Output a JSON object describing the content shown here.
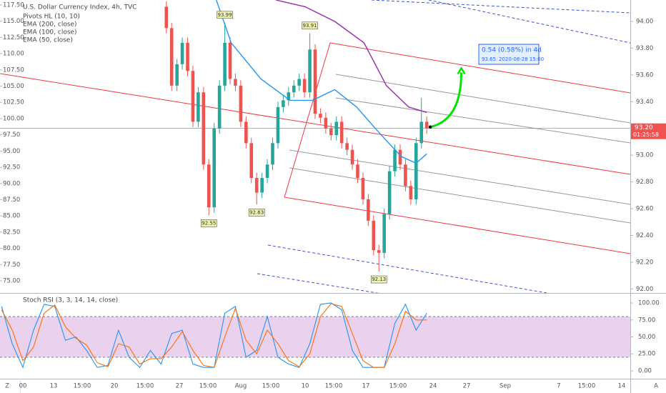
{
  "chart_data": [
    {
      "type": "candlestick",
      "title": "U.S. Dollar Currency Index, 4h, TVC",
      "indicators": [
        "Pivots HL (10, 10)",
        "EMA (200, close)",
        "EMA (100, close)",
        "EMA (50, close)"
      ],
      "x": [
        31,
        32,
        33,
        34,
        35,
        36,
        37,
        38,
        39,
        40,
        41,
        42,
        43,
        44,
        45,
        46,
        47,
        48,
        49,
        50,
        51,
        52,
        53,
        54,
        55,
        56,
        57,
        58,
        59,
        60,
        61,
        62,
        63,
        64,
        65,
        66,
        67,
        68,
        69,
        70,
        71,
        72,
        73,
        74,
        75,
        76,
        77,
        78,
        79,
        80
      ],
      "open": [
        94.11,
        93.95,
        93.52,
        93.68,
        93.84,
        93.63,
        93.25,
        93.47,
        92.93,
        92.61,
        93.2,
        93.52,
        93.84,
        93.57,
        93.52,
        93.25,
        93.09,
        92.83,
        92.72,
        92.83,
        92.93,
        93.09,
        93.36,
        93.41,
        93.47,
        93.52,
        93.57,
        93.47,
        93.79,
        93.31,
        93.28,
        93.2,
        93.15,
        93.25,
        93.09,
        93.04,
        92.93,
        92.83,
        92.67,
        92.51,
        92.29,
        92.27,
        92.56,
        92.88,
        93.04,
        92.93,
        92.77,
        92.67,
        93.09,
        93.25
      ],
      "high": [
        94.15,
        93.99,
        93.72,
        93.88,
        93.88,
        93.67,
        93.51,
        93.51,
        92.97,
        93.24,
        93.56,
        93.99,
        93.88,
        93.61,
        93.56,
        93.29,
        93.13,
        92.87,
        92.87,
        92.97,
        93.13,
        93.4,
        93.45,
        93.51,
        93.56,
        93.61,
        93.61,
        93.91,
        93.83,
        93.35,
        93.32,
        93.24,
        93.29,
        93.29,
        93.13,
        93.08,
        92.97,
        92.87,
        92.71,
        92.55,
        92.33,
        92.6,
        92.92,
        93.08,
        93.08,
        92.97,
        92.81,
        93.13,
        93.43,
        93.29
      ],
      "low": [
        93.91,
        93.48,
        93.48,
        93.64,
        93.59,
        93.21,
        93.21,
        92.89,
        92.55,
        92.57,
        93.16,
        93.48,
        93.53,
        93.48,
        93.21,
        93.05,
        92.79,
        92.63,
        92.68,
        92.79,
        92.89,
        93.05,
        93.32,
        93.37,
        93.43,
        93.48,
        93.43,
        93.43,
        93.27,
        93.24,
        93.16,
        93.11,
        93.11,
        93.05,
        93.0,
        92.89,
        92.79,
        92.63,
        92.47,
        92.25,
        92.13,
        92.23,
        92.52,
        92.84,
        92.89,
        92.73,
        92.63,
        92.63,
        93.05,
        93.16
      ],
      "close": [
        93.95,
        93.52,
        93.68,
        93.84,
        93.63,
        93.25,
        93.47,
        92.93,
        92.61,
        93.2,
        93.52,
        93.84,
        93.57,
        93.52,
        93.25,
        93.09,
        92.83,
        92.72,
        92.83,
        92.93,
        93.09,
        93.36,
        93.41,
        93.47,
        93.52,
        93.57,
        93.47,
        93.79,
        93.31,
        93.28,
        93.2,
        93.15,
        93.25,
        93.09,
        93.04,
        92.93,
        92.83,
        92.67,
        92.51,
        92.29,
        92.27,
        92.56,
        92.88,
        93.04,
        92.93,
        92.77,
        92.67,
        93.09,
        93.25,
        93.2
      ],
      "up_color": "#26a69a",
      "down_color": "#ef5350",
      "series": [
        {
          "color": "#2196f3",
          "x": [
            40.4,
            43.2,
            48.8,
            54.3,
            58.5,
            62.7,
            66.8,
            71,
            75.2,
            78,
            80
          ],
          "values": [
            94.16,
            93.84,
            93.57,
            93.41,
            93.41,
            93.49,
            93.36,
            93.17,
            92.99,
            92.94,
            93.01
          ]
        },
        {
          "color": "#9c27b0",
          "x": [
            51.6,
            57.1,
            62.7,
            68.2,
            72.4,
            76.6,
            80
          ],
          "values": [
            94.16,
            94.11,
            94.0,
            93.84,
            93.52,
            93.36,
            93.32
          ]
        }
      ],
      "pivots": {
        "x": [
          42,
          39,
          48,
          58,
          71
        ],
        "values": [
          93.99,
          92.55,
          92.63,
          93.91,
          92.13
        ]
      },
      "last_price": {
        "value": 93.2,
        "label": "93.20",
        "color": "#ef5350"
      },
      "countdown": "01:25:58",
      "forecast": {
        "change": "0.54 (0.58%) in 4d",
        "price": 93.65,
        "date": "2020-08-28 15:00",
        "x": 86.5
      },
      "xlim": [
        -0.3,
        118.3
      ],
      "ylim": [
        91.97,
        94.16
      ],
      "yticks": [
        {
          "value": 94.0,
          "label": "94.00"
        },
        {
          "value": 93.8,
          "label": "93.80"
        },
        {
          "value": 93.6,
          "label": "93.60"
        },
        {
          "value": 93.4,
          "label": "93.40"
        },
        {
          "value": 93.0,
          "label": "93.00"
        },
        {
          "value": 92.8,
          "label": "92.80"
        },
        {
          "value": 92.6,
          "label": "92.60"
        },
        {
          "value": 92.4,
          "label": "92.40"
        },
        {
          "value": 92.2,
          "label": "92.20"
        },
        {
          "value": 92.0,
          "label": "92.00"
        }
      ],
      "y2lim": [
        73.13,
        118.27
      ],
      "y2ticks": [
        {
          "value": 117.5,
          "label": "117.50"
        },
        {
          "value": 115,
          "label": "115.00"
        },
        {
          "value": 112.5,
          "label": "112.50"
        },
        {
          "value": 110,
          "label": "110.00"
        },
        {
          "value": 107.5,
          "label": "107.50"
        },
        {
          "value": 105,
          "label": "105.00"
        },
        {
          "value": 102.5,
          "label": "102.50"
        },
        {
          "value": 100,
          "label": "100.00"
        },
        {
          "value": 97.5,
          "label": "97.50"
        },
        {
          "value": 95,
          "label": "95.00"
        },
        {
          "value": 92.5,
          "label": "92.50"
        },
        {
          "value": 90,
          "label": "90.00"
        },
        {
          "value": 87.5,
          "label": "87.50"
        },
        {
          "value": 85,
          "label": "85.00"
        },
        {
          "value": 82.5,
          "label": "82.50"
        },
        {
          "value": 80,
          "label": "80.00"
        },
        {
          "value": 77.5,
          "label": "77.50"
        },
        {
          "value": 75,
          "label": "75.00"
        }
      ],
      "categories": [
        "00",
        "13",
        "15:00",
        "20",
        "15:00",
        "27",
        "15:00",
        "Aug",
        "15:00",
        "10",
        "15:00",
        "17",
        "15:00",
        "24",
        "27",
        "Sep",
        "7",
        "15:00",
        "14"
      ]
    },
    {
      "type": "line",
      "title": "Stoch RSI (3, 3, 14, 14, close)",
      "series": [
        {
          "color": "#2196f3",
          "x": [
            0,
            2,
            4,
            6,
            8,
            10,
            12,
            14,
            16,
            18,
            20,
            22,
            24,
            26,
            28,
            30,
            32,
            34,
            36,
            38,
            40,
            42,
            44,
            46,
            48,
            50,
            52,
            54,
            56,
            58,
            60,
            62,
            64,
            66,
            68,
            70,
            72,
            74,
            76,
            78,
            80
          ],
          "values": [
            95,
            40,
            5,
            60,
            98,
            95,
            45,
            50,
            30,
            5,
            8,
            60,
            20,
            5,
            30,
            10,
            55,
            60,
            10,
            5,
            5,
            85,
            95,
            20,
            30,
            80,
            20,
            10,
            5,
            40,
            98,
            100,
            90,
            30,
            5,
            5,
            5,
            70,
            98,
            60,
            85
          ]
        },
        {
          "color": "#ff6d00",
          "x": [
            0,
            2,
            4,
            6,
            8,
            10,
            12,
            14,
            16,
            18,
            20,
            22,
            24,
            26,
            28,
            30,
            32,
            34,
            36,
            38,
            40,
            42,
            44,
            46,
            48,
            50,
            52,
            54,
            56,
            58,
            60,
            62,
            64,
            66,
            68,
            70,
            72,
            74,
            76,
            78,
            80
          ],
          "values": [
            90,
            60,
            15,
            35,
            85,
            97,
            65,
            48,
            38,
            12,
            6,
            40,
            35,
            10,
            18,
            18,
            35,
            58,
            30,
            8,
            5,
            50,
            92,
            45,
            25,
            60,
            40,
            15,
            6,
            25,
            80,
            99,
            95,
            55,
            15,
            5,
            5,
            40,
            88,
            75,
            75
          ]
        }
      ],
      "bands": [
        20,
        80
      ],
      "band_color": "#e1bee7",
      "ylim": [
        -11.6,
        111.6
      ],
      "yticks": [
        {
          "value": 100,
          "label": "100.00"
        },
        {
          "value": 75,
          "label": "75.00"
        },
        {
          "value": 50,
          "label": "50.00"
        },
        {
          "value": 25,
          "label": "25.00"
        },
        {
          "value": 0,
          "label": "0.00"
        }
      ]
    }
  ],
  "controls": [
    "Z",
    "A"
  ]
}
